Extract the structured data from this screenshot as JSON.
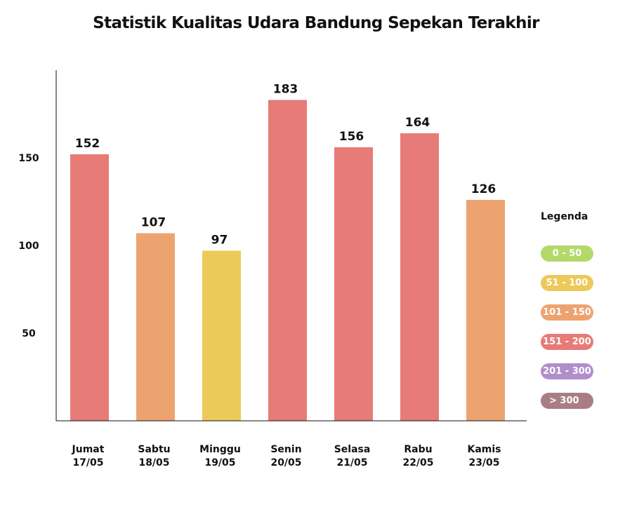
{
  "title": "Statistik Kualitas Udara Bandung Sepekan Terakhir",
  "legend": {
    "title": "Legenda",
    "items": [
      {
        "label": "0 - 50",
        "color": "#b3d96b"
      },
      {
        "label": "51 - 100",
        "color": "#ecca5a"
      },
      {
        "label": "101 - 150",
        "color": "#eda370"
      },
      {
        "label": "151 - 200",
        "color": "#e77b77"
      },
      {
        "label": "201 - 300",
        "color": "#b08ecb"
      },
      {
        "label": "> 300",
        "color": "#a87e84"
      }
    ]
  },
  "chart_data": {
    "type": "bar",
    "title": "Statistik Kualitas Udara Bandung Sepekan Terakhir",
    "categories": [
      {
        "day": "Jumat",
        "date": "17/05"
      },
      {
        "day": "Sabtu",
        "date": "18/05"
      },
      {
        "day": "Minggu",
        "date": "19/05"
      },
      {
        "day": "Senin",
        "date": "20/05"
      },
      {
        "day": "Selasa",
        "date": "21/05"
      },
      {
        "day": "Rabu",
        "date": "22/05"
      },
      {
        "day": "Kamis",
        "date": "23/05"
      }
    ],
    "values": [
      152,
      107,
      97,
      183,
      156,
      164,
      126
    ],
    "bar_colors": [
      "#e77b77",
      "#eda370",
      "#ecca5a",
      "#e77b77",
      "#e77b77",
      "#e77b77",
      "#eda370"
    ],
    "yticks": [
      50,
      100,
      150
    ],
    "ylim": [
      0,
      200
    ],
    "xlabel": "",
    "ylabel": "",
    "grid": false
  }
}
